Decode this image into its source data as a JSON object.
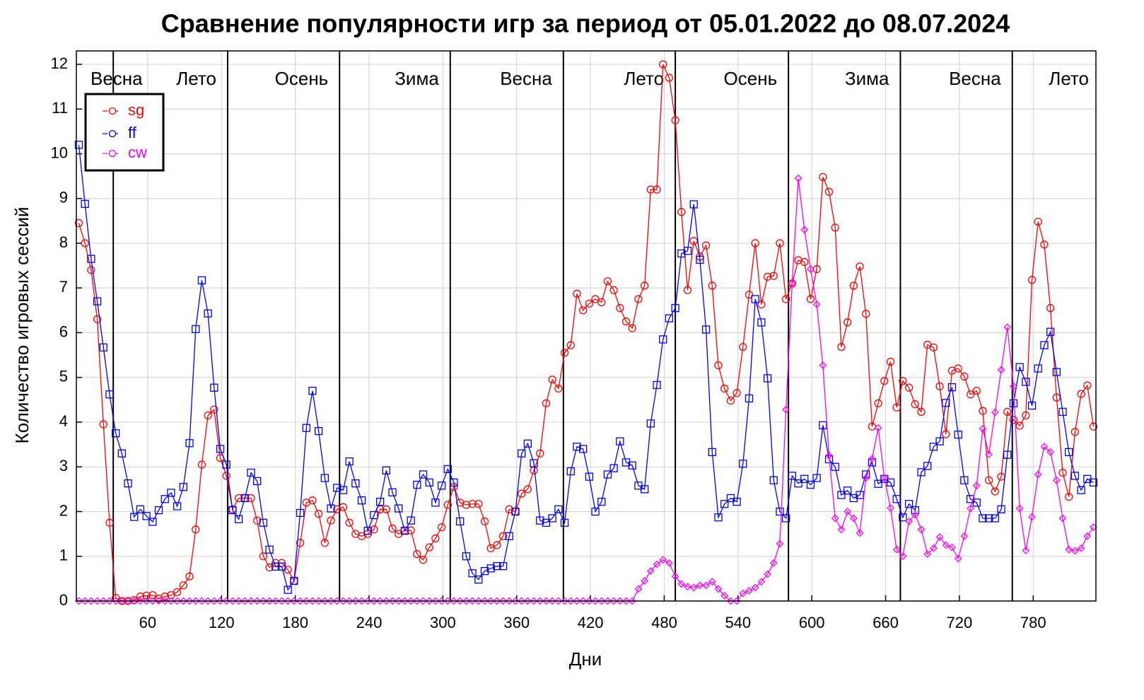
{
  "chart_data": {
    "type": "line",
    "title": "Сравнение популярности игр за период от 05.01.2022 до 08.07.2024",
    "xlabel": "Дни",
    "ylabel": "Количество игровых сессий",
    "x": [
      4,
      9,
      14,
      19,
      24,
      29,
      34,
      39,
      44,
      49,
      54,
      59,
      64,
      69,
      74,
      79,
      84,
      89,
      94,
      99,
      104,
      109,
      114,
      119,
      124,
      129,
      134,
      139,
      144,
      149,
      154,
      159,
      164,
      169,
      174,
      179,
      184,
      189,
      194,
      199,
      204,
      209,
      214,
      219,
      224,
      229,
      234,
      239,
      244,
      249,
      254,
      259,
      264,
      269,
      274,
      279,
      284,
      289,
      294,
      299,
      304,
      309,
      314,
      319,
      324,
      329,
      334,
      339,
      344,
      349,
      354,
      359,
      364,
      369,
      374,
      379,
      384,
      389,
      394,
      399,
      404,
      409,
      414,
      419,
      424,
      429,
      434,
      439,
      444,
      449,
      454,
      459,
      464,
      469,
      474,
      479,
      484,
      489,
      494,
      499,
      504,
      509,
      514,
      519,
      524,
      529,
      534,
      539,
      544,
      549,
      554,
      559,
      564,
      569,
      574,
      579,
      584,
      589,
      594,
      599,
      604,
      609,
      614,
      619,
      624,
      629,
      634,
      639,
      644,
      649,
      654,
      659,
      664,
      669,
      674,
      679,
      684,
      689,
      694,
      699,
      704,
      709,
      714,
      719,
      724,
      729,
      734,
      739,
      744,
      749,
      754,
      759,
      764,
      769,
      774,
      779,
      784,
      789,
      794,
      799,
      804,
      809,
      814,
      819,
      824,
      829
    ],
    "series": [
      {
        "name": "sg",
        "color": "#ff0000",
        "marker": "circle",
        "values": [
          8.45,
          8.0,
          7.4,
          6.3,
          3.95,
          1.75,
          0.07,
          0.0,
          0.0,
          0.02,
          0.1,
          0.12,
          0.13,
          0.05,
          0.1,
          0.13,
          0.2,
          0.35,
          0.55,
          1.6,
          3.05,
          4.15,
          4.28,
          3.2,
          2.8,
          2.05,
          2.3,
          2.3,
          2.3,
          1.8,
          1.0,
          0.75,
          0.85,
          0.85,
          0.7,
          0.45,
          1.3,
          2.2,
          2.25,
          1.95,
          1.3,
          1.8,
          2.05,
          2.1,
          1.75,
          1.5,
          1.45,
          1.5,
          1.6,
          2.05,
          2.05,
          1.62,
          1.5,
          1.58,
          1.58,
          1.05,
          0.92,
          1.2,
          1.4,
          1.65,
          2.15,
          2.55,
          2.2,
          2.15,
          2.17,
          2.17,
          1.78,
          1.18,
          1.25,
          1.45,
          2.05,
          2.0,
          2.4,
          2.5,
          2.92,
          3.3,
          4.42,
          4.95,
          4.75,
          5.55,
          5.72,
          6.87,
          6.5,
          6.65,
          6.75,
          6.68,
          7.15,
          6.95,
          6.55,
          6.25,
          6.1,
          6.75,
          7.05,
          9.2,
          9.2,
          12.0,
          11.7,
          10.75,
          8.7,
          6.95,
          8.05,
          7.7,
          7.95,
          7.05,
          5.27,
          4.75,
          4.48,
          4.65,
          5.68,
          6.85,
          8.0,
          6.63,
          7.25,
          7.27,
          8.0,
          6.75,
          7.1,
          7.62,
          7.58,
          6.75,
          7.42,
          9.48,
          9.15,
          8.35,
          5.68,
          6.23,
          7.05,
          7.48,
          6.42,
          3.9,
          4.42,
          4.92,
          5.35,
          4.33,
          4.92,
          4.77,
          4.4,
          4.23,
          5.73,
          5.67,
          4.8,
          3.73,
          5.15,
          5.2,
          5.02,
          4.62,
          4.7,
          4.25,
          2.7,
          2.45,
          2.78,
          4.23,
          4.05,
          3.92,
          4.15,
          7.18,
          8.48,
          7.97,
          6.55,
          4.55,
          2.87,
          2.33,
          3.78,
          4.63,
          4.82,
          3.9
        ]
      },
      {
        "name": "ff",
        "color": "#0000ff",
        "marker": "square",
        "values": [
          10.2,
          8.88,
          7.65,
          6.7,
          5.67,
          4.62,
          3.75,
          3.3,
          2.63,
          1.88,
          2.05,
          1.9,
          1.77,
          2.03,
          2.28,
          2.42,
          2.12,
          2.55,
          3.53,
          6.08,
          7.17,
          6.43,
          4.77,
          3.4,
          3.05,
          2.03,
          1.83,
          2.3,
          2.87,
          2.68,
          1.75,
          1.15,
          0.77,
          0.77,
          0.25,
          0.45,
          1.97,
          3.87,
          4.7,
          3.8,
          2.75,
          2.07,
          2.53,
          2.48,
          3.12,
          2.63,
          2.25,
          1.57,
          1.92,
          2.22,
          2.92,
          2.43,
          2.07,
          1.57,
          1.8,
          2.6,
          2.83,
          2.65,
          2.2,
          2.58,
          2.95,
          2.65,
          1.78,
          1.0,
          0.62,
          0.48,
          0.67,
          0.73,
          0.78,
          0.78,
          1.45,
          2.0,
          3.3,
          3.52,
          3.08,
          1.8,
          1.75,
          1.85,
          2.05,
          1.75,
          2.9,
          3.45,
          3.4,
          2.78,
          2.0,
          2.22,
          2.83,
          2.97,
          3.57,
          3.1,
          3.03,
          2.58,
          2.5,
          3.97,
          4.83,
          5.85,
          6.32,
          6.55,
          7.77,
          7.83,
          8.87,
          7.63,
          6.07,
          3.33,
          1.87,
          2.17,
          2.3,
          2.22,
          3.07,
          4.53,
          6.75,
          6.23,
          4.98,
          2.7,
          2.0,
          1.85,
          2.8,
          2.63,
          2.73,
          2.6,
          2.75,
          3.93,
          3.17,
          3.0,
          2.37,
          2.47,
          2.3,
          2.37,
          2.83,
          3.1,
          2.62,
          2.73,
          2.65,
          2.28,
          1.87,
          2.17,
          2.03,
          2.88,
          3.02,
          3.45,
          3.57,
          4.43,
          4.78,
          3.72,
          2.7,
          2.28,
          2.2,
          1.85,
          1.85,
          1.85,
          2.05,
          3.27,
          4.42,
          5.23,
          4.9,
          4.37,
          5.2,
          5.72,
          6.02,
          5.12,
          4.23,
          3.33,
          2.8,
          2.48,
          2.73,
          2.65
        ]
      },
      {
        "name": "cw",
        "color": "#ff00ff",
        "marker": "diamond",
        "values": [
          0,
          0,
          0,
          0,
          0,
          0,
          0,
          0,
          0,
          0,
          0,
          0,
          0,
          0,
          0,
          0,
          0,
          0,
          0,
          0,
          0,
          0,
          0,
          0,
          0,
          0,
          0,
          0,
          0,
          0,
          0,
          0,
          0,
          0,
          0,
          0,
          0,
          0,
          0,
          0,
          0,
          0,
          0,
          0,
          0,
          0,
          0,
          0,
          0,
          0,
          0,
          0,
          0,
          0,
          0,
          0,
          0,
          0,
          0,
          0,
          0,
          0,
          0,
          0,
          0,
          0,
          0,
          0,
          0,
          0,
          0,
          0,
          0,
          0,
          0,
          0,
          0,
          0,
          0,
          0,
          0,
          0,
          0,
          0,
          0,
          0,
          0,
          0,
          0,
          0,
          0,
          0.27,
          0.45,
          0.67,
          0.82,
          0.92,
          0.85,
          0.55,
          0.38,
          0.32,
          0.3,
          0.35,
          0.35,
          0.43,
          0.27,
          0.12,
          0,
          0,
          0.17,
          0.23,
          0.3,
          0.43,
          0.6,
          0.85,
          1.28,
          4.28,
          7.1,
          9.45,
          8.3,
          7.42,
          6.63,
          5.27,
          3.25,
          1.85,
          1.6,
          2.0,
          1.85,
          1.52,
          2.75,
          3.18,
          3.87,
          2.75,
          2.08,
          1.15,
          1.0,
          1.78,
          1.93,
          1.6,
          1.05,
          1.18,
          1.43,
          1.25,
          1.2,
          0.95,
          1.45,
          2.07,
          2.58,
          3.85,
          3.28,
          4.22,
          5.17,
          6.12,
          4.8,
          2.07,
          1.13,
          1.88,
          2.83,
          3.45,
          3.33,
          2.7,
          1.85,
          1.15,
          1.12,
          1.18,
          1.45,
          1.65
        ]
      }
    ],
    "xlim": [
      2,
      831
    ],
    "ylim": [
      0,
      12.3
    ],
    "xticks": [
      60,
      120,
      180,
      240,
      300,
      360,
      420,
      480,
      540,
      600,
      660,
      720,
      780
    ],
    "yticks": [
      0,
      1,
      2,
      3,
      4,
      5,
      6,
      7,
      8,
      9,
      10,
      11,
      12
    ],
    "grid": true,
    "legend": "upper left",
    "seasons": [
      "Весна",
      "Лето",
      "Осень",
      "Зима",
      "Весна",
      "Лето",
      "Осень",
      "Зима",
      "Весна",
      "Лето"
    ],
    "season_boundaries": [
      32,
      125,
      216,
      306,
      398,
      489,
      581,
      672,
      763
    ]
  }
}
